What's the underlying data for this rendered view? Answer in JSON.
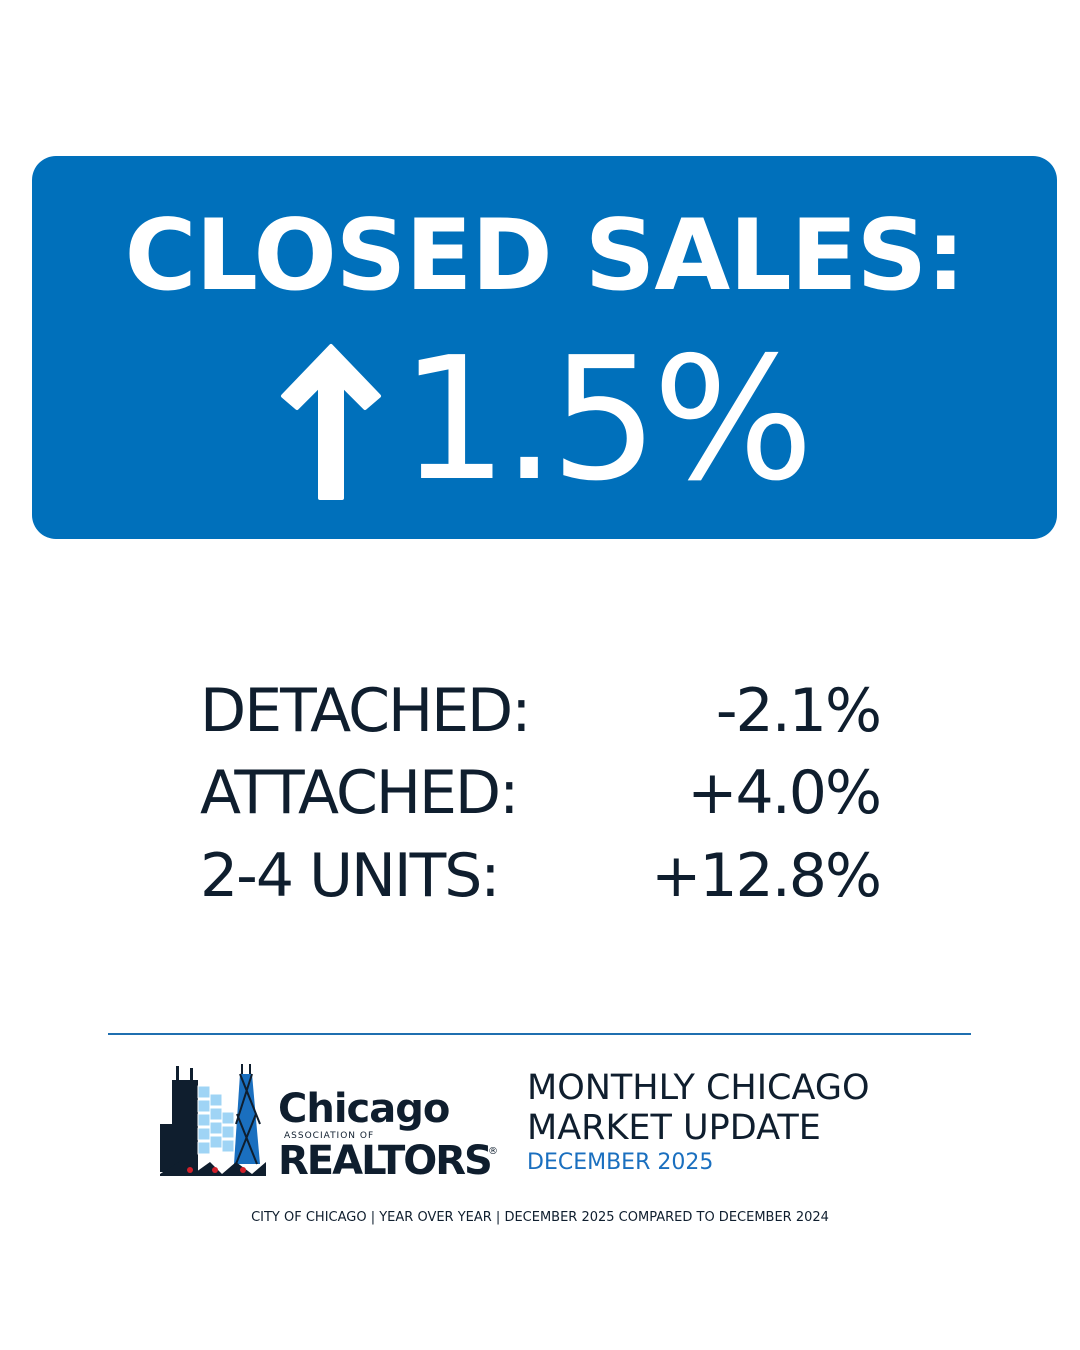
{
  "headline": {
    "title": "CLOSED SALES:",
    "change": "1.5%"
  },
  "breakdown": {
    "rows": [
      [
        "DETACHED:",
        "-2.1%"
      ],
      [
        "ATTACHED:",
        "+4.0%"
      ],
      [
        "2-4 UNITS:",
        "+12.8%"
      ]
    ]
  },
  "logo": {
    "name": "Chicago",
    "tagline": "ASSOCIATION OF",
    "brand": "REALTORS",
    "mark": "®"
  },
  "update": {
    "line1": "MONTHLY CHICAGO",
    "line2": "MARKET UPDATE",
    "period": "DECEMBER 2025"
  },
  "footer": {
    "note": "CITY OF CHICAGO | YEAR OVER YEAR | DECEMBER 2025 COMPARED TO DECEMBER 2024"
  }
}
